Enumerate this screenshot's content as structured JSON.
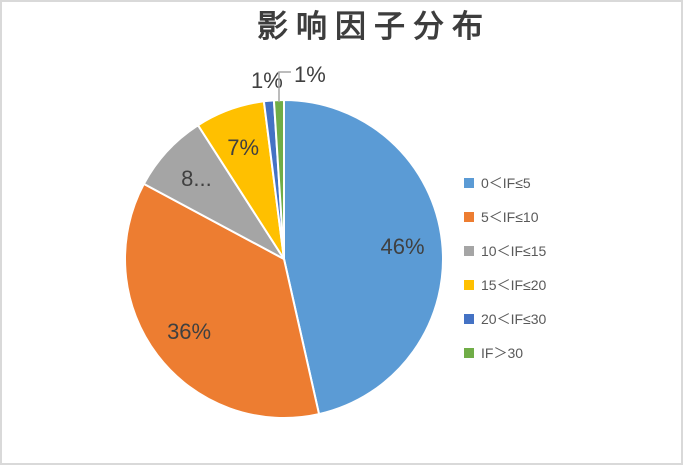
{
  "chart": {
    "title": "影响因子分布",
    "title_color": "#3d3d3d",
    "label_color": "#404040",
    "legend_text_color": "#595959",
    "leader_line_color": "#a6a6a6",
    "slice_border_color": "#ffffff",
    "background": "#ffffff",
    "frame_border_color": "#d9d9d9"
  },
  "chart_data": {
    "type": "pie",
    "title": "影响因子分布",
    "categories": [
      "0＜IF≤5",
      "5＜IF≤10",
      "10＜IF≤15",
      "15＜IF≤20",
      "20＜IF≤30",
      "IF＞30"
    ],
    "values": [
      46,
      36,
      8,
      7,
      1,
      1
    ],
    "value_unit": "percent",
    "displayed_labels": [
      "46%",
      "36%",
      "8...",
      "7%",
      "1%",
      "1%"
    ],
    "label_placement": [
      "inside",
      "inside",
      "inside",
      "inside",
      "outside",
      "outside-leader"
    ],
    "colors": [
      "#5b9bd5",
      "#ed7d31",
      "#a5a5a5",
      "#ffc000",
      "#4472c4",
      "#70ad47"
    ],
    "legend_position": "right",
    "start_angle_deg": 0,
    "clockwise": true,
    "gridlines": false
  }
}
